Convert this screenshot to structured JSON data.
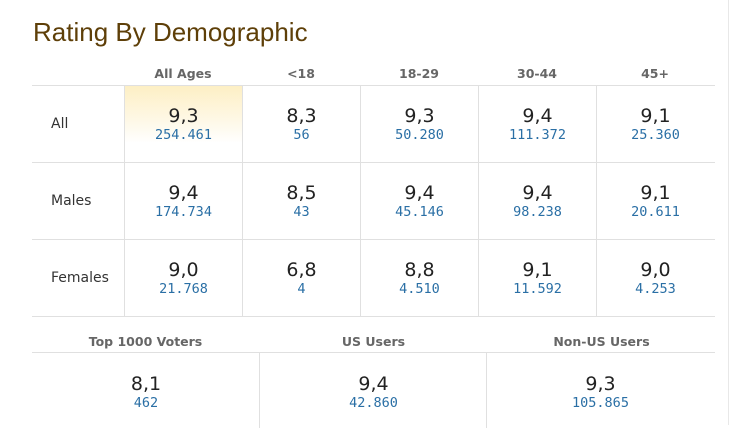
{
  "title": "Rating By Demographic",
  "columns": [
    "All Ages",
    "<18",
    "18-29",
    "30-44",
    "45+"
  ],
  "rows": [
    {
      "label": "All",
      "cells": [
        {
          "rating": "9,3",
          "votes": "254.461"
        },
        {
          "rating": "8,3",
          "votes": "56"
        },
        {
          "rating": "9,3",
          "votes": "50.280"
        },
        {
          "rating": "9,4",
          "votes": "111.372"
        },
        {
          "rating": "9,1",
          "votes": "25.360"
        }
      ]
    },
    {
      "label": "Males",
      "cells": [
        {
          "rating": "9,4",
          "votes": "174.734"
        },
        {
          "rating": "8,5",
          "votes": "43"
        },
        {
          "rating": "9,4",
          "votes": "45.146"
        },
        {
          "rating": "9,4",
          "votes": "98.238"
        },
        {
          "rating": "9,1",
          "votes": "20.611"
        }
      ]
    },
    {
      "label": "Females",
      "cells": [
        {
          "rating": "9,0",
          "votes": "21.768"
        },
        {
          "rating": "6,8",
          "votes": "4"
        },
        {
          "rating": "8,8",
          "votes": "4.510"
        },
        {
          "rating": "9,1",
          "votes": "11.592"
        },
        {
          "rating": "9,0",
          "votes": "4.253"
        }
      ]
    }
  ],
  "groups": [
    {
      "label": "Top 1000 Voters",
      "rating": "8,1",
      "votes": "462"
    },
    {
      "label": "US Users",
      "rating": "9,4",
      "votes": "42.860"
    },
    {
      "label": "Non-US Users",
      "rating": "9,3",
      "votes": "105.865"
    }
  ],
  "colors": {
    "title": "#5e3f08",
    "votes_link": "#2a6fa5",
    "highlight": "#fdefc4"
  }
}
